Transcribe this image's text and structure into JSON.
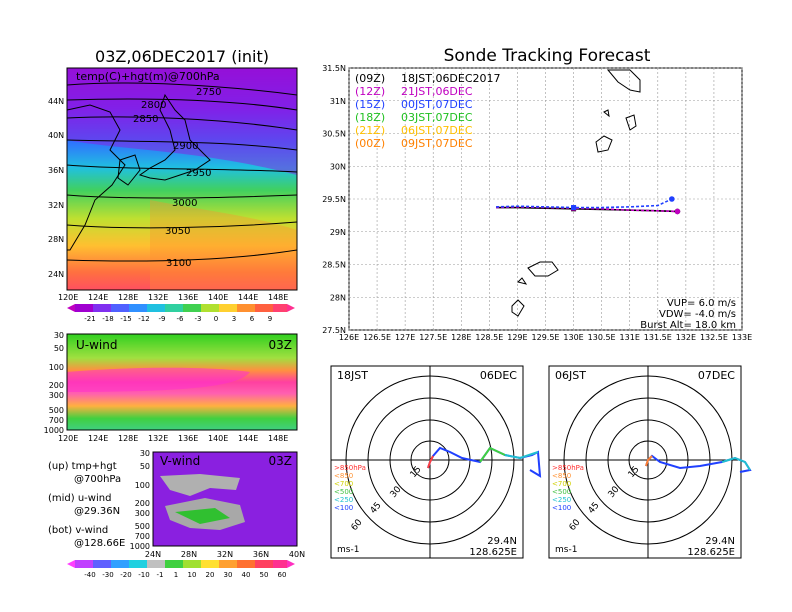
{
  "colors": {
    "black": "#000000",
    "purple": "#c000c0",
    "blue": "#2040ff",
    "green": "#20c020",
    "yellow": "#ffc000",
    "orange": "#ff8000"
  },
  "map_panel": {
    "title": "03Z,06DEC2017 (init)",
    "label": "temp(C)+hgt(m)@700hPa",
    "lat_labels": [
      "44N",
      "40N",
      "36N",
      "32N",
      "28N",
      "24N"
    ],
    "lon_labels": [
      "120E",
      "124E",
      "128E",
      "132E",
      "136E",
      "140E",
      "144E",
      "148E"
    ],
    "contours": [
      "2750",
      "2800",
      "2850",
      "2900",
      "2950",
      "3000",
      "3050",
      "3100"
    ],
    "colorbar_labels": [
      "-21",
      "-18",
      "-15",
      "-12",
      "-9",
      "-6",
      "-3",
      "0",
      "3",
      "6",
      "9"
    ]
  },
  "uwind_panel": {
    "label": "U-wind",
    "time": "03Z",
    "p_labels": [
      "30",
      "50",
      "100",
      "200",
      "300",
      "500",
      "700",
      "1000"
    ],
    "lon_labels": [
      "120E",
      "124E",
      "128E",
      "132E",
      "136E",
      "140E",
      "144E",
      "148E"
    ]
  },
  "vwind_panel": {
    "label": "V-wind",
    "time": "03Z",
    "p_labels": [
      "30",
      "50",
      "100",
      "200",
      "300",
      "500",
      "700",
      "1000"
    ],
    "lat_labels": [
      "24N",
      "28N",
      "32N",
      "36N",
      "40N"
    ]
  },
  "legend_notes": {
    "up": "(up) tmp+hgt",
    "up2": "@700hPa",
    "mid": "(mid) u-wind",
    "mid2": "@29.36N",
    "bot": "(bot) v-wind",
    "bot2": "@128.66E"
  },
  "wind_colorbar_labels": [
    "-40",
    "-30",
    "-20",
    "-10",
    "-1",
    "1",
    "10",
    "20",
    "30",
    "40",
    "50",
    "60"
  ],
  "tracking": {
    "title": "Sonde Tracking Forecast",
    "lat_labels": [
      "31.5N",
      "31N",
      "30.5N",
      "30N",
      "29.5N",
      "29N",
      "28.5N",
      "28N",
      "27.5N"
    ],
    "lon_labels": [
      "126E",
      "126.5E",
      "127E",
      "127.5E",
      "128E",
      "128.5E",
      "129E",
      "129.5E",
      "130E",
      "130.5E",
      "131E",
      "131.5E",
      "132E",
      "132.5E",
      "133E"
    ],
    "legend": [
      {
        "code": "(09Z)",
        "time": "18JST,06DEC2017"
      },
      {
        "code": "(12Z)",
        "time": "21JST,06DEC"
      },
      {
        "code": "(15Z)",
        "time": "00JST,07DEC"
      },
      {
        "code": "(18Z)",
        "time": "03JST,07DEC"
      },
      {
        "code": "(21Z)",
        "time": "06JST,07DEC"
      },
      {
        "code": "(00Z)",
        "time": "09JST,07DEC"
      }
    ],
    "vup": "VUP= 6.0 m/s",
    "vdw": "VDW= -4.0 m/s",
    "burst": "Burst Alt= 18.0 km"
  },
  "hodo_left": {
    "time": "18JST",
    "date": "06DEC",
    "loc1": "29.4N",
    "loc2": "128.625E",
    "unit": "ms-1",
    "rings": [
      "15",
      "30",
      "45",
      "60"
    ],
    "levels": [
      ">850hPa",
      "<850",
      "<700",
      "<500",
      "<250",
      "<100"
    ]
  },
  "hodo_right": {
    "time": "06JST",
    "date": "07DEC",
    "loc1": "29.4N",
    "loc2": "128.625E",
    "unit": "ms-1",
    "rings": [
      "15",
      "30",
      "45",
      "60"
    ],
    "levels": [
      ">850hPa",
      "<850",
      "<700",
      "<500",
      "<250",
      "<100"
    ]
  },
  "chart_data": [
    {
      "type": "heatmap",
      "title": "03Z,06DEC2017 (init)",
      "xlabel": "",
      "ylabel": "",
      "xlim": [
        120,
        150
      ],
      "ylim": [
        22,
        48
      ],
      "annotations": [
        "temp(C)+hgt(m)@700hPa"
      ],
      "contour_levels": [
        2750,
        2800,
        2850,
        2900,
        2950,
        3000,
        3050,
        3100
      ]
    },
    {
      "type": "heatmap",
      "title": "U-wind",
      "xlim": [
        120,
        150
      ],
      "ylim": [
        1000,
        30
      ]
    },
    {
      "type": "heatmap",
      "title": "V-wind",
      "xlim": [
        24,
        40
      ],
      "ylim": [
        1000,
        30
      ]
    },
    {
      "type": "line",
      "title": "Sonde Tracking Forecast",
      "xlim": [
        126,
        133
      ],
      "ylim": [
        27.5,
        31.5
      ],
      "series": [
        {
          "name": "(09Z) 18JST,06DEC2017",
          "x": [
            128.62,
            129.0,
            129.5,
            130.0,
            130.5,
            131.0,
            131.5,
            131.85
          ],
          "y": [
            29.37,
            29.37,
            29.36,
            29.35,
            29.34,
            29.33,
            29.32,
            29.31
          ]
        },
        {
          "name": "(12Z) 21JST,06DEC",
          "x": [
            128.62,
            129.0,
            129.5,
            130.0,
            130.5,
            131.0,
            131.5,
            131.85
          ],
          "y": [
            29.37,
            29.38,
            29.37,
            29.36,
            29.35,
            29.33,
            29.32,
            29.31
          ]
        },
        {
          "name": "(15Z) 00JST,07DEC",
          "x": [
            128.62,
            129.0,
            129.5,
            130.0,
            130.5,
            131.0,
            131.5,
            131.75
          ],
          "y": [
            29.38,
            29.39,
            29.38,
            29.37,
            29.37,
            29.38,
            29.4,
            29.5
          ]
        }
      ]
    }
  ]
}
